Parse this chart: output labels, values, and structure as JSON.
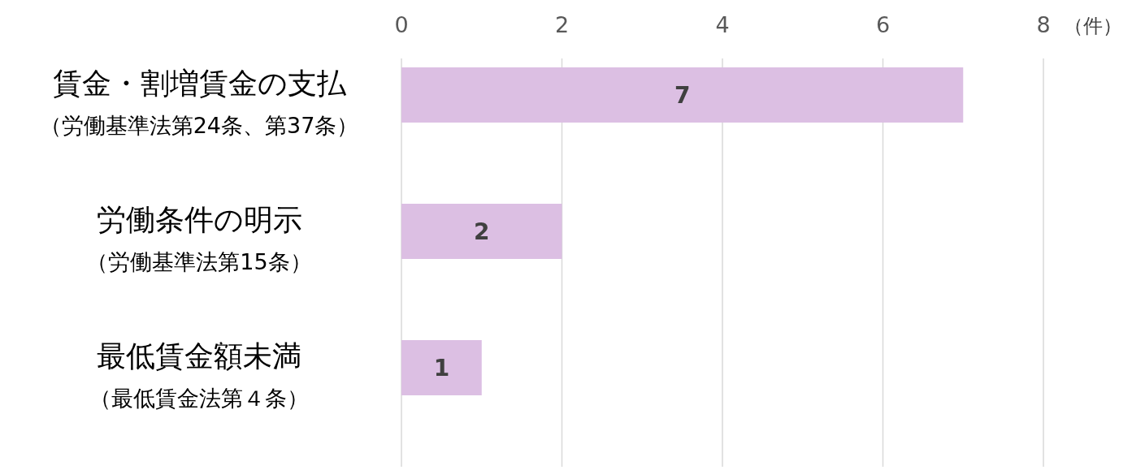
{
  "chart_data": {
    "type": "bar",
    "orientation": "horizontal",
    "categories": [
      "賃金・割増賃金の支払（労働基準法第24条、第37条）",
      "労働条件の明示（労働基準法第15条）",
      "最低賃金額未満（最低賃金法第４条）"
    ],
    "values": [
      7,
      2,
      1
    ],
    "color": "#dcbfe3",
    "xlim": [
      0,
      8
    ],
    "xticks": [
      0,
      2,
      4,
      6,
      8
    ],
    "xlabel": "（件）",
    "grid": "x",
    "data_labels": true
  }
}
